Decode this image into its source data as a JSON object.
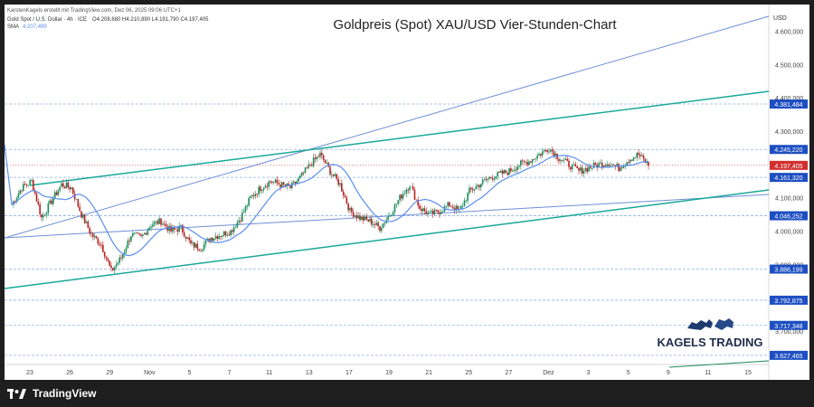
{
  "header": {
    "credit": "KarstenKagels erstellt mit TradingView.com, Dez 06, 2025 09:06 UTC+1",
    "symbol_line": "Gold Spot / U.S. Dollar · 4h · ICE",
    "ohlc": "O4.208,680 H4.210,890 L4.191,790 C4.197,405",
    "sma_label": "SMA",
    "sma_value": "4.207,499"
  },
  "footer": {
    "brand": "TradingView"
  },
  "logo": {
    "text": "KAGELS TRADING"
  },
  "colors": {
    "candle_up": "#1b8a5a",
    "candle_down": "#b32222",
    "sma": "#5b8ef0",
    "channel": "#1aa89a",
    "trend": "#6f8fd6",
    "level": "#8fb0e0",
    "badge": "#1e4fc2",
    "current_price": "#d32f2f"
  },
  "chart_data": {
    "type": "candlestick",
    "title": "Goldpreis (Spot) XAU/USD Vier-Stunden-Chart",
    "y_axis_unit": "USD",
    "ylim": [
      3600,
      4680
    ],
    "y_ticks": [
      "4.600,000",
      "4.500,000",
      "4.400,000",
      "4.300,000",
      "4.100,000",
      "4.000,000",
      "3.900,000",
      "3.800,000",
      "3.700,000"
    ],
    "x_ticks": [
      "23",
      "26",
      "29",
      "Nov",
      "5",
      "7",
      "11",
      "13",
      "17",
      "19",
      "21",
      "25",
      "27",
      "Dez",
      "3",
      "5",
      "9",
      "11",
      "15"
    ],
    "levels": [
      {
        "label": "4.381,484",
        "value": 4381.484
      },
      {
        "label": "4.245,220",
        "value": 4245.22
      },
      {
        "label": "4.161,320",
        "value": 4161.32
      },
      {
        "label": "4.046,252",
        "value": 4046.252
      },
      {
        "label": "3.886,199",
        "value": 3886.199
      },
      {
        "label": "3.792,875",
        "value": 3792.875
      },
      {
        "label": "3.717,348",
        "value": 3717.348
      },
      {
        "label": "3.627,465",
        "value": 3627.465
      }
    ],
    "current_price": {
      "label": "4.197,405",
      "value": 4197.405
    },
    "close_path": [
      4080,
      4130,
      4150,
      4040,
      4090,
      4140,
      4130,
      4050,
      3990,
      3960,
      3880,
      3920,
      3990,
      3980,
      4020,
      4030,
      4000,
      4010,
      3960,
      3950,
      3980,
      3990,
      4000,
      4040,
      4100,
      4130,
      4150,
      4140,
      4130,
      4160,
      4200,
      4230,
      4180,
      4140,
      4060,
      4040,
      4030,
      4010,
      4050,
      4100,
      4140,
      4070,
      4050,
      4060,
      4080,
      4060,
      4120,
      4140,
      4160,
      4170,
      4180,
      4200,
      4210,
      4230,
      4250,
      4220,
      4200,
      4180,
      4190,
      4200,
      4205,
      4190,
      4215,
      4230,
      4197
    ]
  }
}
